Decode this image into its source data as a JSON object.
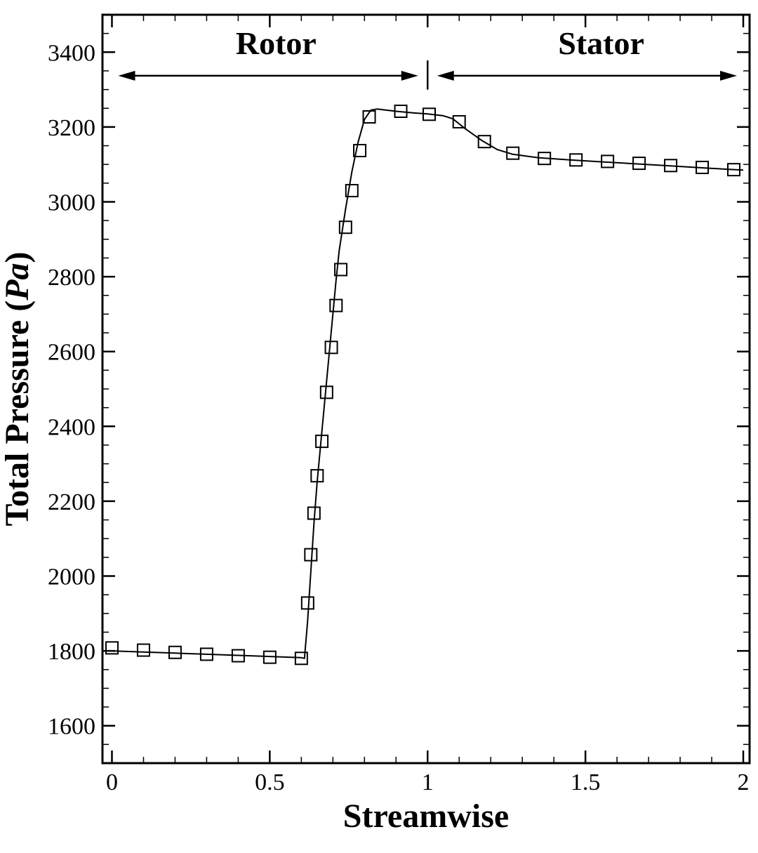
{
  "chart_data": {
    "type": "line",
    "title": "",
    "xlabel": "Streamwise",
    "ylabel_main": "Total Pressure (",
    "ylabel_unit": "Pa",
    "ylabel_close": ")",
    "xlim": [
      -0.03,
      2.02
    ],
    "ylim": [
      1500,
      3500
    ],
    "x_ticks": [
      0,
      0.5,
      1,
      1.5,
      2
    ],
    "x_tick_labels": [
      "0",
      "0.5",
      "1",
      "1.5",
      "2"
    ],
    "x_minor_step": 0.1,
    "y_ticks": [
      1600,
      1800,
      2000,
      2200,
      2400,
      2600,
      2800,
      3000,
      3200,
      3400
    ],
    "y_tick_labels": [
      "1600",
      "1800",
      "2000",
      "2200",
      "2400",
      "2600",
      "2800",
      "3000",
      "3200",
      "3400"
    ],
    "y_minor_step": 50,
    "grid": false,
    "annotations": [
      {
        "text": "Rotor",
        "x": 0.52,
        "y": 3395,
        "arrow_from": 0.02,
        "arrow_to": 0.97,
        "arrow_y": 3337
      },
      {
        "text": "Stator",
        "x": 1.55,
        "y": 3395,
        "arrow_from": 1.03,
        "arrow_to": 1.98,
        "arrow_y": 3337
      }
    ],
    "divider": {
      "x": 1.0,
      "y_from": 3300,
      "y_to": 3378
    },
    "series": [
      {
        "marker": "square",
        "line": {
          "x": [
            0,
            0.1,
            0.2,
            0.3,
            0.4,
            0.5,
            0.6,
            0.61,
            0.62,
            0.63,
            0.64,
            0.65,
            0.66,
            0.67,
            0.68,
            0.69,
            0.7,
            0.71,
            0.72,
            0.74,
            0.76,
            0.78,
            0.8,
            0.82,
            0.84,
            0.86,
            0.9,
            0.95,
            1.0,
            1.05,
            1.08,
            1.12,
            1.17,
            1.22,
            1.27,
            1.35,
            1.45,
            1.55,
            1.65,
            1.75,
            1.85,
            1.95,
            2.0
          ],
          "y": [
            1800,
            1797,
            1794,
            1791,
            1788,
            1785,
            1782,
            1780,
            1880,
            2010,
            2140,
            2250,
            2340,
            2430,
            2520,
            2610,
            2700,
            2790,
            2870,
            2980,
            3080,
            3160,
            3220,
            3245,
            3248,
            3246,
            3242,
            3238,
            3235,
            3230,
            3222,
            3195,
            3165,
            3140,
            3127,
            3118,
            3112,
            3107,
            3102,
            3097,
            3092,
            3087,
            3085
          ]
        },
        "points": {
          "x": [
            0,
            0.1,
            0.2,
            0.3,
            0.4,
            0.5,
            0.6,
            0.62,
            0.63,
            0.64,
            0.65,
            0.665,
            0.68,
            0.695,
            0.71,
            0.725,
            0.74,
            0.76,
            0.785,
            0.815,
            0.915,
            1.005,
            1.1,
            1.18,
            1.27,
            1.37,
            1.47,
            1.57,
            1.67,
            1.77,
            1.87,
            1.97
          ],
          "y": [
            1808,
            1802,
            1796,
            1791,
            1787,
            1783,
            1780,
            1928,
            2057,
            2168,
            2268,
            2360,
            2491,
            2611,
            2723,
            2819,
            2932,
            3030,
            3137,
            3227,
            3242,
            3234,
            3214,
            3161,
            3130,
            3116,
            3112,
            3108,
            3103,
            3097,
            3092,
            3086
          ]
        }
      }
    ]
  }
}
